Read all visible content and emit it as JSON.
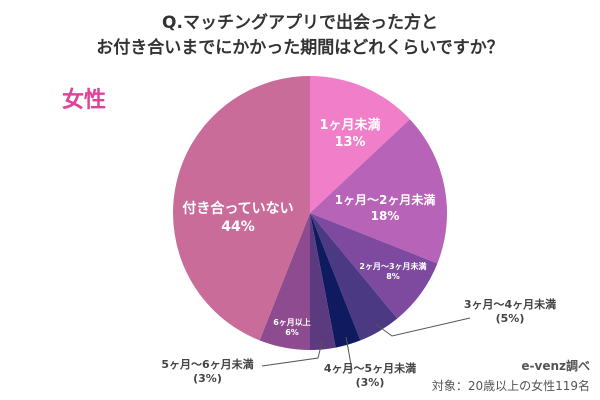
{
  "title_lines": [
    "Q.マッチングアプリで出会った方と",
    "お付き合いまでにかかった期間はどれくらいですか？"
  ],
  "subject": "女性",
  "chart_data": {
    "type": "pie",
    "title": "Q.マッチングアプリで出会った方とお付き合いまでにかかった期間はどれくらいですか？",
    "start": "top, clockwise",
    "slices": [
      {
        "label": "1ヶ月未満",
        "value": 13,
        "display": "13%",
        "color": "#f07ec8"
      },
      {
        "label": "1ヶ月〜2ヶ月未満",
        "value": 18,
        "display": "18%",
        "color": "#b763b8"
      },
      {
        "label": "2ヶ月〜3ヶ月未満",
        "value": 8,
        "display": "8%",
        "color": "#7d4a9f"
      },
      {
        "label": "3ヶ月〜4ヶ月未満",
        "value": 5,
        "display": "(5%)",
        "color": "#4b3984"
      },
      {
        "label": "4ヶ月〜5ヶ月未満",
        "value": 3,
        "display": "(3%)",
        "color": "#0f1b5e"
      },
      {
        "label": "5ヶ月〜6ヶ月未満",
        "value": 3,
        "display": "(3%)",
        "color": "#5b3a80"
      },
      {
        "label": "6ヶ月以上",
        "value": 6,
        "display": "6%",
        "color": "#8f4b8f"
      },
      {
        "label": "付き合っていない",
        "value": 44,
        "display": "44%",
        "color": "#c96c99"
      }
    ]
  },
  "source": {
    "line1": "e-venz調べ",
    "line2": "対象：20歳以上の女性119名"
  }
}
